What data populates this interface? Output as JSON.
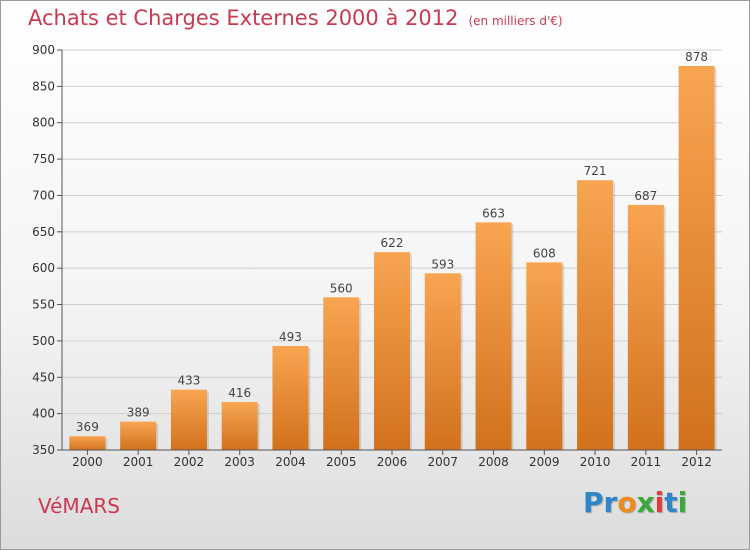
{
  "header": {
    "title": "Achats et Charges Externes 2000 à 2012",
    "subtitle": "(en milliers d'€)"
  },
  "commune": "VéMARS",
  "logo": {
    "text": "Proxiti",
    "letters": [
      {
        "ch": "P",
        "color": "#2e86c8"
      },
      {
        "ch": "r",
        "color": "#2e86c8"
      },
      {
        "ch": "o",
        "color": "#f08a1c"
      },
      {
        "ch": "x",
        "color": "#3aa83a"
      },
      {
        "ch": "i",
        "color": "#e23b3b"
      },
      {
        "ch": "t",
        "color": "#2e86c8"
      },
      {
        "ch": "i",
        "color": "#3aa83a"
      }
    ]
  },
  "chart_data": {
    "type": "bar",
    "categories": [
      "2000",
      "2001",
      "2002",
      "2003",
      "2004",
      "2005",
      "2006",
      "2007",
      "2008",
      "2009",
      "2010",
      "2011",
      "2012"
    ],
    "values": [
      369,
      389,
      433,
      416,
      493,
      560,
      622,
      593,
      663,
      608,
      721,
      687,
      878
    ],
    "ylim": [
      350,
      900
    ],
    "yticks": [
      350,
      400,
      450,
      500,
      550,
      600,
      650,
      700,
      750,
      800,
      850,
      900
    ],
    "grid": true,
    "bar_color_top": "#f8a552",
    "bar_color_bottom": "#d2711c"
  }
}
